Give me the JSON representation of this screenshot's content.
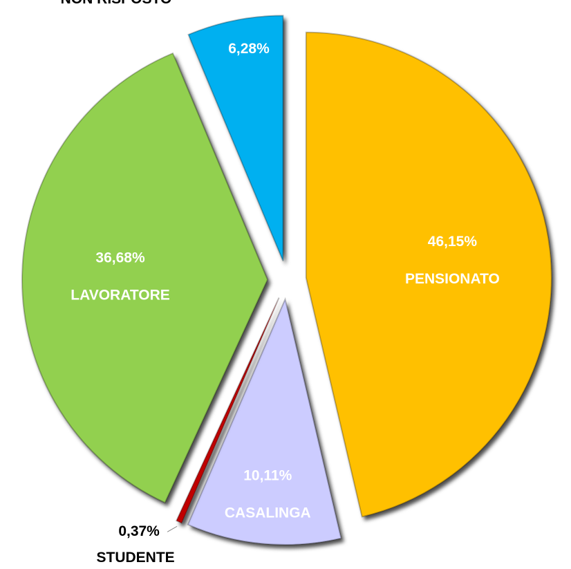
{
  "chart_data": {
    "type": "pie",
    "categories": [
      "PENSIONATO",
      "CASALINGA",
      "STUDENTE",
      "LAVORATORE",
      "NON RISPOSTO"
    ],
    "values": [
      46.15,
      10.11,
      0.37,
      36.68,
      6.28
    ],
    "value_labels": [
      "46,15%",
      "10,11%",
      "0,37%",
      "36,68%",
      "6,28%"
    ],
    "colors": [
      "#ffc000",
      "#ccccff",
      "#c00000",
      "#92d050",
      "#00b0f0"
    ]
  }
}
